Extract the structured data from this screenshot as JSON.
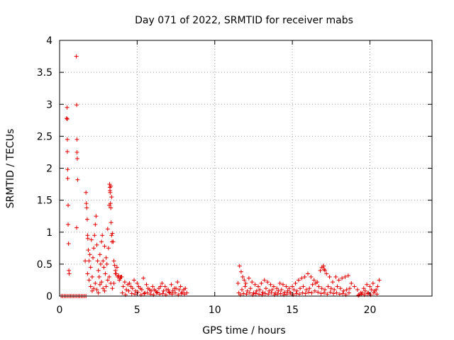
{
  "chart_data": {
    "type": "scatter",
    "title": "Day 071 of 2022, SRMTID for receiver mabs",
    "xlabel": "GPS time / hours",
    "ylabel": "SRMTID / TECUs",
    "xlim": [
      0,
      24
    ],
    "ylim": [
      0,
      4
    ],
    "xticks": [
      "0",
      "5",
      "10",
      "15",
      "20"
    ],
    "xtick_values": [
      0,
      5,
      10,
      15,
      20
    ],
    "yticks": [
      "0",
      "0.5",
      "1",
      "1.5",
      "2",
      "2.5",
      "3",
      "3.5",
      "4"
    ],
    "ytick_values": [
      0,
      0.5,
      1,
      1.5,
      2,
      2.5,
      3,
      3.5,
      4
    ],
    "grid": true,
    "marker": "+",
    "color": "#e00000",
    "series": [
      {
        "name": "SRMTID",
        "x": [
          0.1,
          0.2,
          0.3,
          0.4,
          0.5,
          0.6,
          0.7,
          0.8,
          0.9,
          1.0,
          1.1,
          1.2,
          1.3,
          1.4,
          1.5,
          1.6,
          1.7,
          0.45,
          0.48,
          0.5,
          0.5,
          0.52,
          0.52,
          0.55,
          0.55,
          0.58,
          0.6,
          0.62,
          0.5,
          1.08,
          1.1,
          1.12,
          1.12,
          1.14,
          1.16,
          1.1,
          1.65,
          1.7,
          1.72,
          1.75,
          1.78,
          1.8,
          1.82,
          1.85,
          1.9,
          1.95,
          2.0,
          2.05,
          2.1,
          2.15,
          2.2,
          2.25,
          2.3,
          2.35,
          2.4,
          2.45,
          2.5,
          2.55,
          2.6,
          2.65,
          2.7,
          2.75,
          2.8,
          2.85,
          2.9,
          2.95,
          3.0,
          3.05,
          3.1,
          3.15,
          3.2,
          3.25,
          3.3,
          3.35,
          3.4,
          3.45,
          3.5,
          3.55,
          3.6,
          3.65,
          3.7,
          3.75,
          3.8,
          3.85,
          3.9,
          3.95,
          1.8,
          1.9,
          2.0,
          2.1,
          2.2,
          2.3,
          2.4,
          2.5,
          2.6,
          2.7,
          2.8,
          2.9,
          3.0,
          3.1,
          3.2,
          3.3,
          3.4,
          3.5,
          3.6,
          3.22,
          3.24,
          3.26,
          3.28,
          3.3,
          3.32,
          3.35,
          3.38,
          4.0,
          4.2,
          4.4,
          4.6,
          4.8,
          5.0,
          5.2,
          5.4,
          5.6,
          5.8,
          6.0,
          6.2,
          6.4,
          6.6,
          6.8,
          7.0,
          7.2,
          7.4,
          7.6,
          7.8,
          8.0,
          8.2,
          4.1,
          4.3,
          4.5,
          4.7,
          4.9,
          5.1,
          5.3,
          5.5,
          5.7,
          5.9,
          6.1,
          6.3,
          6.5,
          6.7,
          6.9,
          7.1,
          7.3,
          7.5,
          7.7,
          7.9,
          8.1,
          4.05,
          4.25,
          4.45,
          4.65,
          4.85,
          5.05,
          5.25,
          5.45,
          5.65,
          5.85,
          6.05,
          6.25,
          6.45,
          6.65,
          6.85,
          7.05,
          7.25,
          7.45,
          7.65,
          7.85,
          8.05,
          11.5,
          11.6,
          11.7,
          11.8,
          11.9,
          12.0,
          12.2,
          12.4,
          12.6,
          12.8,
          13.0,
          13.2,
          13.4,
          13.6,
          13.8,
          14.0,
          14.2,
          14.4,
          14.6,
          14.8,
          15.0,
          15.2,
          15.4,
          15.6,
          15.8,
          16.0,
          16.2,
          16.4,
          16.6,
          16.8,
          17.0,
          17.2,
          17.4,
          17.6,
          17.8,
          18.0,
          18.2,
          18.4,
          18.6,
          18.8,
          19.0,
          19.2,
          19.4,
          19.6,
          19.8,
          20.0,
          20.2,
          20.4,
          20.6,
          11.55,
          11.75,
          11.95,
          12.1,
          12.3,
          12.5,
          12.7,
          12.9,
          13.1,
          13.3,
          13.5,
          13.7,
          13.9,
          14.1,
          14.3,
          14.5,
          14.7,
          14.9,
          15.1,
          15.3,
          15.5,
          15.7,
          15.9,
          16.1,
          16.3,
          16.5,
          16.7,
          16.9,
          17.1,
          17.3,
          17.5,
          17.7,
          17.9,
          18.1,
          18.3,
          18.5,
          18.7,
          19.3,
          19.5,
          19.7,
          19.9,
          20.1,
          20.3,
          20.5,
          11.65,
          11.85,
          12.05,
          12.25,
          12.45,
          12.65,
          12.85,
          13.05,
          13.25,
          13.45,
          13.65,
          13.85,
          14.05,
          14.25,
          14.45,
          14.65,
          14.85,
          15.05,
          15.25,
          15.45,
          15.65,
          15.85,
          16.05,
          16.25,
          16.45,
          16.65,
          16.85,
          17.05,
          17.25,
          17.45,
          17.65,
          17.85,
          18.05,
          18.25,
          18.45,
          18.65,
          19.25,
          19.45,
          19.65,
          19.85,
          20.05,
          20.25,
          20.45,
          16.9,
          17.0,
          17.05,
          17.1
        ],
        "y": [
          0,
          0,
          0,
          0,
          0,
          0,
          0,
          0,
          0,
          0,
          0,
          0,
          0,
          0,
          0,
          0,
          0,
          2.78,
          2.95,
          2.45,
          2.26,
          1.98,
          1.84,
          1.42,
          1.12,
          0.82,
          0.4,
          0.35,
          2.77,
          3.75,
          2.99,
          2.45,
          2.25,
          2.15,
          1.82,
          1.07,
          0.55,
          1.62,
          1.45,
          1.38,
          1.2,
          0.95,
          0.9,
          0.72,
          0.55,
          0.65,
          0.45,
          0.88,
          0.3,
          0.6,
          0.75,
          0.95,
          1.12,
          1.25,
          0.8,
          0.55,
          0.4,
          0.3,
          0.65,
          0.5,
          0.85,
          0.95,
          0.55,
          0.45,
          0.78,
          0.35,
          0.6,
          0.5,
          1.05,
          0.75,
          1.42,
          1.65,
          1.72,
          1.55,
          0.98,
          0.85,
          0.55,
          0.48,
          0.4,
          0.35,
          0.45,
          0.3,
          0.32,
          0.25,
          0.28,
          0.3,
          0.35,
          0.25,
          0.15,
          0.08,
          0.12,
          0.2,
          0.1,
          0.05,
          0.18,
          0.22,
          0.12,
          0.08,
          0.15,
          0.25,
          0.3,
          0.2,
          0.12,
          0.2,
          0.35,
          1.75,
          1.7,
          1.62,
          1.45,
          1.38,
          1.15,
          0.95,
          0.85,
          0.3,
          0.22,
          0.18,
          0.15,
          0.25,
          0.2,
          0.12,
          0.28,
          0.18,
          0.1,
          0.15,
          0.08,
          0.12,
          0.2,
          0.15,
          0.1,
          0.18,
          0.12,
          0.22,
          0.15,
          0.1,
          0.05,
          0.15,
          0.1,
          0.2,
          0.12,
          0.08,
          0.15,
          0.1,
          0.05,
          0.12,
          0.08,
          0.1,
          0.06,
          0.15,
          0.08,
          0.1,
          0.05,
          0.08,
          0.12,
          0.1,
          0.06,
          0.12,
          0.05,
          0.02,
          0.08,
          0.04,
          0.03,
          0.06,
          0.02,
          0.04,
          0.05,
          0.03,
          0.02,
          0.05,
          0.03,
          0.04,
          0.02,
          0.06,
          0.03,
          0.05,
          0.02,
          0.04,
          0.03,
          0.2,
          0.47,
          0.38,
          0.3,
          0.25,
          0.2,
          0.28,
          0.22,
          0.18,
          0.15,
          0.2,
          0.25,
          0.22,
          0.18,
          0.15,
          0.12,
          0.2,
          0.18,
          0.15,
          0.12,
          0.15,
          0.2,
          0.25,
          0.28,
          0.3,
          0.35,
          0.3,
          0.25,
          0.22,
          0.4,
          0.47,
          0.35,
          0.3,
          0.22,
          0.3,
          0.25,
          0.28,
          0.3,
          0.32,
          0.2,
          0.15,
          0.1,
          0.05,
          0.12,
          0.18,
          0.15,
          0.2,
          0.1,
          0.25,
          0.05,
          0.1,
          0.15,
          0.08,
          0.12,
          0.05,
          0.08,
          0.1,
          0.06,
          0.12,
          0.08,
          0.1,
          0.05,
          0.08,
          0.1,
          0.06,
          0.08,
          0.05,
          0.1,
          0.08,
          0.12,
          0.15,
          0.1,
          0.12,
          0.18,
          0.2,
          0.15,
          0.12,
          0.1,
          0.15,
          0.12,
          0.1,
          0.15,
          0.12,
          0.08,
          0.1,
          0.12,
          0.02,
          0.05,
          0.08,
          0.05,
          0.1,
          0.08,
          0.15,
          0.02,
          0.04,
          0.03,
          0.05,
          0.02,
          0.04,
          0.03,
          0.02,
          0.04,
          0.03,
          0.05,
          0.02,
          0.03,
          0.04,
          0.02,
          0.03,
          0.05,
          0.02,
          0.04,
          0.03,
          0.05,
          0.04,
          0.06,
          0.05,
          0.08,
          0.06,
          0.04,
          0.05,
          0.03,
          0.06,
          0.04,
          0.05,
          0.03,
          0.04,
          0.02,
          0.05,
          0.01,
          0.03,
          0.02,
          0.04,
          0.02,
          0.05,
          0.03,
          0.45,
          0.47,
          0.42,
          0.4
        ]
      }
    ]
  }
}
